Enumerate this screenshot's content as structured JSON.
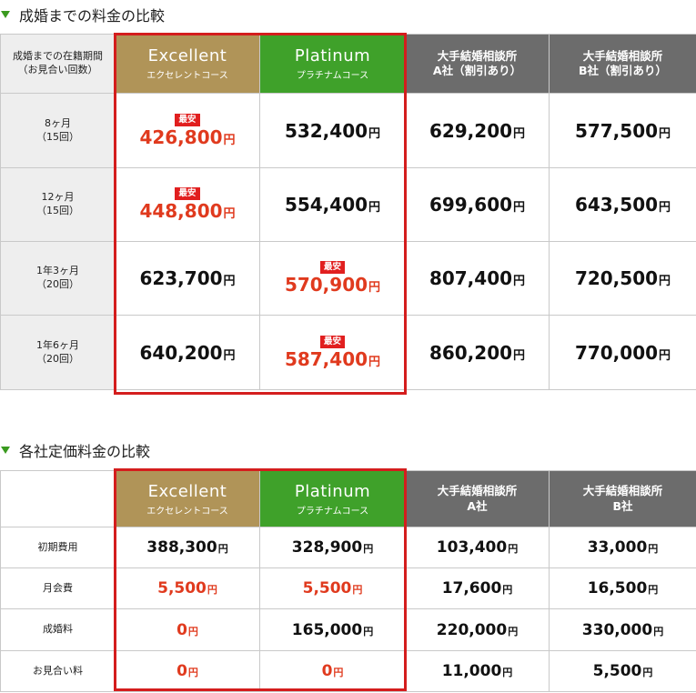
{
  "section1": {
    "title": "成婚までの料金の比較",
    "header": {
      "rowhead": "成婚までの在籍期間\n（お見合い回数）",
      "excellent_en": "Excellent",
      "excellent_jp": "エクセレントコース",
      "platinum_en": "Platinum",
      "platinum_jp": "プラチナムコース",
      "compA": "大手結婚相談所\nA社（割引あり）",
      "compB": "大手結婚相談所\nB社（割引あり）"
    },
    "badge": "最安",
    "yen": "円",
    "rows": [
      {
        "label": "8ヶ月\n（15回）",
        "excellent": "426,800",
        "platinum": "532,400",
        "a": "629,200",
        "b": "577,500"
      },
      {
        "label": "12ヶ月\n（15回）",
        "excellent": "448,800",
        "platinum": "554,400",
        "a": "699,600",
        "b": "643,500"
      },
      {
        "label": "1年3ヶ月\n（20回）",
        "excellent": "623,700",
        "platinum": "570,900",
        "a": "807,400",
        "b": "720,500"
      },
      {
        "label": "1年6ヶ月\n（20回）",
        "excellent": "640,200",
        "platinum": "587,400",
        "a": "860,200",
        "b": "770,000"
      }
    ]
  },
  "section2": {
    "title": "各社定価料金の比較",
    "header": {
      "excellent_en": "Excellent",
      "excellent_jp": "エクセレントコース",
      "platinum_en": "Platinum",
      "platinum_jp": "プラチナムコース",
      "compA": "大手結婚相談所\nA社",
      "compB": "大手結婚相談所\nB社"
    },
    "yen": "円",
    "rows": [
      {
        "label": "初期費用",
        "excellent": "388,300",
        "platinum": "328,900",
        "a": "103,400",
        "b": "33,000"
      },
      {
        "label": "月会費",
        "excellent": "5,500",
        "platinum": "5,500",
        "a": "17,600",
        "b": "16,500"
      },
      {
        "label": "成婚料",
        "excellent": "0",
        "platinum": "165,000",
        "a": "220,000",
        "b": "330,000"
      },
      {
        "label": "お見合い料",
        "excellent": "0",
        "platinum": "0",
        "a": "11,000",
        "b": "5,500"
      }
    ]
  },
  "colors": {
    "gold": "#b09458",
    "green": "#3fa12a",
    "gray": "#6c6c6c",
    "highlight": "#e03a1e",
    "frame": "#d41d1d"
  }
}
